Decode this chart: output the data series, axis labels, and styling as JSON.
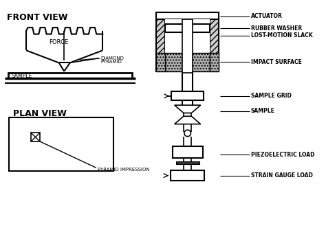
{
  "bg_color": "#ffffff",
  "line_color": "#000000",
  "text_color": "#000000",
  "labels": {
    "front_view": "FRONT VIEW",
    "plan_view": "PLAN VIEW",
    "force": "FORCE",
    "sample_left": "SAMPLE",
    "diamond_pyramid": "DIAMOND\nPYRAMID",
    "pyramid_impression": "PYRAMID IMPRESSION",
    "actuator": "ACTUATOR",
    "rubber_washer": "RUBBER WASHER",
    "lost_motion": "LOST-MOTION SLACK",
    "impact_surface": "IMPACT SURFACE",
    "sample_grid": "SAMPLE GRID",
    "sample": "SAMPLE",
    "piezoelectric": "PIEZOELECTRIC LOAD",
    "strain_gauge": "STRAIN GAUGE LOAD"
  }
}
